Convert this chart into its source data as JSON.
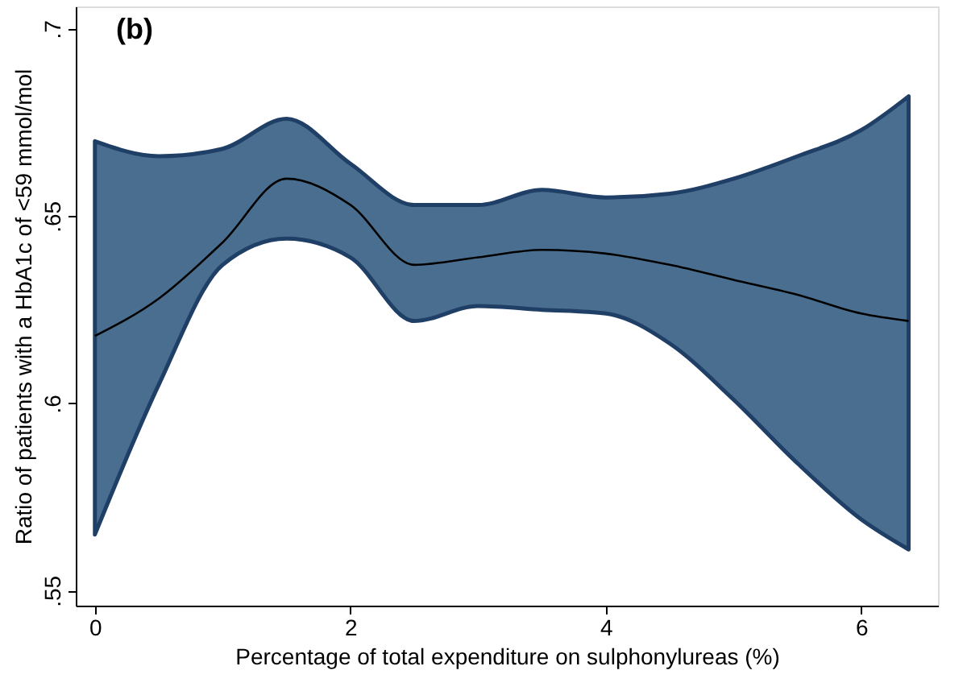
{
  "chart_data": {
    "type": "line",
    "title": "(b)",
    "xlabel": "Percentage of total expenditure on sulphonylureas (%)",
    "ylabel": "Ratio of patients with a HbA1c of <59 mmol/mol",
    "xlim": [
      -0.15,
      6.6
    ],
    "xticks": [
      0,
      2,
      4,
      6
    ],
    "ylim": [
      0.546,
      0.706
    ],
    "yticks": [
      {
        "value": 0.55,
        "label": ".55"
      },
      {
        "value": 0.6,
        "label": ".6"
      },
      {
        "value": 0.65,
        "label": ".65"
      },
      {
        "value": 0.7,
        "label": ".7"
      }
    ],
    "grid": false,
    "marker": "none",
    "line_style": "solid",
    "series": [
      {
        "color": "#000000",
        "x": [
          0,
          0.5,
          1,
          1.5,
          2,
          2.5,
          3,
          3.5,
          4,
          4.5,
          5,
          5.5,
          6,
          6.37
        ],
        "values": [
          0.618,
          0.628,
          0.643,
          0.66,
          0.653,
          0.637,
          0.639,
          0.641,
          0.64,
          0.637,
          0.633,
          0.629,
          0.624,
          0.622
        ],
        "lower": [
          0.565,
          0.605,
          0.637,
          0.644,
          0.639,
          0.622,
          0.626,
          0.625,
          0.624,
          0.616,
          0.601,
          0.584,
          0.569,
          0.561
        ],
        "upper": [
          0.67,
          0.666,
          0.668,
          0.676,
          0.664,
          0.653,
          0.653,
          0.657,
          0.655,
          0.656,
          0.66,
          0.666,
          0.673,
          0.682
        ]
      }
    ]
  }
}
